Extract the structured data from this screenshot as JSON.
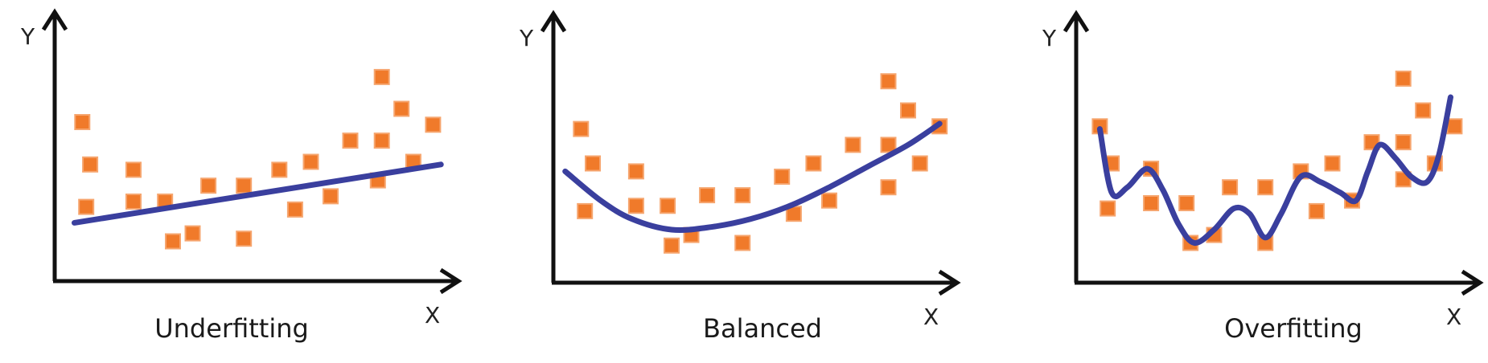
{
  "style": {
    "point_color": "#F07A2A",
    "curve_color": "#3A3F9E",
    "axis_color": "#111111"
  },
  "axes": {
    "x_label": "X",
    "y_label": "Y"
  },
  "chart_data": [
    {
      "type": "scatter",
      "title": "Underfitting",
      "xlabel": "X",
      "ylabel": "Y",
      "xlim": [
        0,
        100
      ],
      "ylim": [
        0,
        100
      ],
      "fit": "linear",
      "points": [
        {
          "x": 7,
          "y": 60
        },
        {
          "x": 9,
          "y": 44
        },
        {
          "x": 8,
          "y": 28
        },
        {
          "x": 20,
          "y": 42
        },
        {
          "x": 20,
          "y": 30
        },
        {
          "x": 28,
          "y": 30
        },
        {
          "x": 30,
          "y": 15
        },
        {
          "x": 35,
          "y": 18
        },
        {
          "x": 39,
          "y": 36
        },
        {
          "x": 48,
          "y": 36
        },
        {
          "x": 48,
          "y": 16
        },
        {
          "x": 57,
          "y": 42
        },
        {
          "x": 61,
          "y": 27
        },
        {
          "x": 65,
          "y": 45
        },
        {
          "x": 70,
          "y": 32
        },
        {
          "x": 75,
          "y": 53
        },
        {
          "x": 82,
          "y": 38
        },
        {
          "x": 83,
          "y": 53
        },
        {
          "x": 83,
          "y": 77
        },
        {
          "x": 88,
          "y": 65
        },
        {
          "x": 91,
          "y": 45
        },
        {
          "x": 96,
          "y": 59
        }
      ],
      "curve": [
        {
          "x": 5,
          "y": 22
        },
        {
          "x": 30,
          "y": 32
        },
        {
          "x": 60,
          "y": 41
        },
        {
          "x": 98,
          "y": 44
        }
      ]
    },
    {
      "type": "scatter",
      "title": "Balanced",
      "xlabel": "X",
      "ylabel": "Y",
      "xlim": [
        0,
        100
      ],
      "ylim": [
        0,
        100
      ],
      "fit": "quadratic",
      "points": [
        {
          "x": 7,
          "y": 58
        },
        {
          "x": 10,
          "y": 45
        },
        {
          "x": 8,
          "y": 27
        },
        {
          "x": 21,
          "y": 42
        },
        {
          "x": 21,
          "y": 29
        },
        {
          "x": 29,
          "y": 29
        },
        {
          "x": 30,
          "y": 14
        },
        {
          "x": 35,
          "y": 18
        },
        {
          "x": 39,
          "y": 33
        },
        {
          "x": 48,
          "y": 33
        },
        {
          "x": 48,
          "y": 15
        },
        {
          "x": 58,
          "y": 40
        },
        {
          "x": 61,
          "y": 26
        },
        {
          "x": 66,
          "y": 45
        },
        {
          "x": 70,
          "y": 31
        },
        {
          "x": 76,
          "y": 52
        },
        {
          "x": 85,
          "y": 36
        },
        {
          "x": 85,
          "y": 52
        },
        {
          "x": 85,
          "y": 76
        },
        {
          "x": 90,
          "y": 65
        },
        {
          "x": 93,
          "y": 45
        },
        {
          "x": 98,
          "y": 59
        }
      ],
      "curve": [
        {
          "x": 3,
          "y": 42
        },
        {
          "x": 12,
          "y": 31
        },
        {
          "x": 20,
          "y": 24
        },
        {
          "x": 30,
          "y": 20
        },
        {
          "x": 40,
          "y": 21
        },
        {
          "x": 50,
          "y": 24
        },
        {
          "x": 60,
          "y": 29
        },
        {
          "x": 70,
          "y": 36
        },
        {
          "x": 80,
          "y": 44
        },
        {
          "x": 90,
          "y": 52
        },
        {
          "x": 98,
          "y": 60
        }
      ]
    },
    {
      "type": "scatter",
      "title": "Overfitting",
      "xlabel": "X",
      "ylabel": "Y",
      "xlim": [
        0,
        100
      ],
      "ylim": [
        0,
        100
      ],
      "fit": "high-degree",
      "points": [
        {
          "x": 6,
          "y": 59
        },
        {
          "x": 9,
          "y": 45
        },
        {
          "x": 8,
          "y": 28
        },
        {
          "x": 19,
          "y": 43
        },
        {
          "x": 19,
          "y": 30
        },
        {
          "x": 28,
          "y": 30
        },
        {
          "x": 29,
          "y": 15
        },
        {
          "x": 35,
          "y": 18
        },
        {
          "x": 39,
          "y": 36
        },
        {
          "x": 48,
          "y": 36
        },
        {
          "x": 48,
          "y": 15
        },
        {
          "x": 57,
          "y": 42
        },
        {
          "x": 61,
          "y": 27
        },
        {
          "x": 65,
          "y": 45
        },
        {
          "x": 70,
          "y": 31
        },
        {
          "x": 75,
          "y": 53
        },
        {
          "x": 83,
          "y": 39
        },
        {
          "x": 83,
          "y": 53
        },
        {
          "x": 83,
          "y": 77
        },
        {
          "x": 88,
          "y": 65
        },
        {
          "x": 91,
          "y": 45
        },
        {
          "x": 96,
          "y": 59
        }
      ],
      "curve": [
        {
          "x": 6,
          "y": 58
        },
        {
          "x": 9,
          "y": 34
        },
        {
          "x": 13,
          "y": 36
        },
        {
          "x": 18,
          "y": 43
        },
        {
          "x": 22,
          "y": 35
        },
        {
          "x": 26,
          "y": 22
        },
        {
          "x": 30,
          "y": 15
        },
        {
          "x": 35,
          "y": 20
        },
        {
          "x": 40,
          "y": 28
        },
        {
          "x": 44,
          "y": 26
        },
        {
          "x": 48,
          "y": 17
        },
        {
          "x": 52,
          "y": 26
        },
        {
          "x": 57,
          "y": 40
        },
        {
          "x": 62,
          "y": 38
        },
        {
          "x": 67,
          "y": 34
        },
        {
          "x": 71,
          "y": 31
        },
        {
          "x": 74,
          "y": 42
        },
        {
          "x": 77,
          "y": 52
        },
        {
          "x": 81,
          "y": 47
        },
        {
          "x": 85,
          "y": 40
        },
        {
          "x": 89,
          "y": 38
        },
        {
          "x": 92,
          "y": 48
        },
        {
          "x": 95,
          "y": 70
        }
      ]
    }
  ]
}
